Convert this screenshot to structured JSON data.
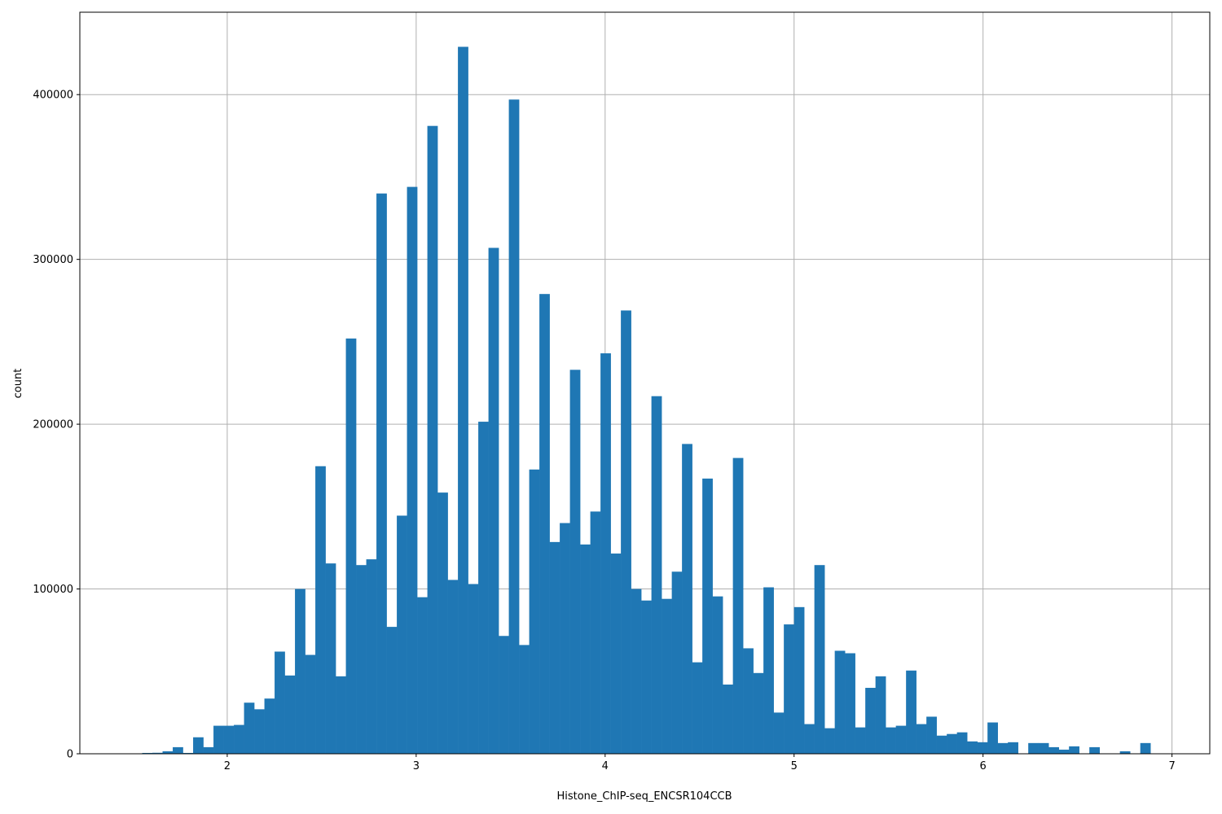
{
  "chart_data": {
    "type": "bar",
    "xlabel": "Histone_ChIP-seq_ENCSR104CCB",
    "ylabel": "count",
    "xlim": [
      1.22,
      7.2
    ],
    "ylim": [
      0,
      450000
    ],
    "xticks": [
      2,
      3,
      4,
      5,
      6,
      7
    ],
    "yticks": [
      0,
      100000,
      200000,
      300000,
      400000
    ],
    "grid": true,
    "bar_color": "#1f77b4",
    "bin_width": 0.0539,
    "bin_edges_start": 1.55,
    "values": [
      500,
      600,
      1500,
      4000,
      500,
      10000,
      4000,
      17000,
      17000,
      17500,
      31000,
      27000,
      33500,
      62000,
      47500,
      100000,
      60000,
      174500,
      115500,
      47000,
      252000,
      114500,
      118000,
      340000,
      77000,
      144500,
      344000,
      95000,
      381000,
      158500,
      105500,
      429000,
      103000,
      201500,
      307000,
      71500,
      397000,
      66000,
      172500,
      279000,
      128500,
      140000,
      233000,
      127000,
      147000,
      243000,
      121500,
      269000,
      100000,
      93000,
      217000,
      94000,
      110500,
      188000,
      55500,
      167000,
      95500,
      42000,
      179500,
      64000,
      49000,
      101000,
      25000,
      78500,
      89000,
      18000,
      114500,
      15500,
      62500,
      61000,
      16000,
      40000,
      47000,
      16000,
      17000,
      50500,
      18000,
      22500,
      11000,
      12000,
      13000,
      7500,
      7000,
      19000,
      6500,
      7000,
      0,
      6500,
      6500,
      4000,
      2500,
      4500,
      0,
      4000,
      0,
      0,
      1500,
      0,
      6500,
      0
    ]
  }
}
